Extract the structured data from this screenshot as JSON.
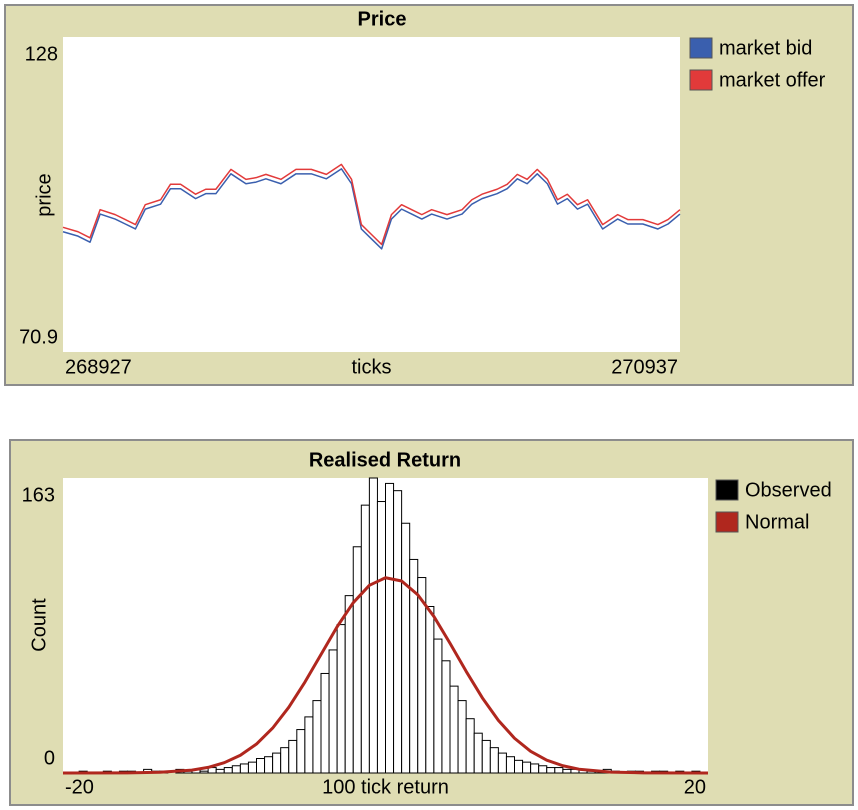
{
  "chart_data": [
    {
      "type": "line",
      "title": "Price",
      "x_label": "ticks",
      "y_label": "price",
      "xlim": [
        268927,
        270937
      ],
      "xticks": [
        268927,
        270937
      ],
      "ylim": [
        70.9,
        128
      ],
      "yticks": [
        70.9,
        128
      ],
      "x": [
        268927,
        268976,
        269015,
        269048,
        269097,
        269130,
        269163,
        269195,
        269245,
        269277,
        269310,
        269359,
        269392,
        269425,
        269474,
        269523,
        269556,
        269588,
        269637,
        269686,
        269736,
        269785,
        269834,
        269867,
        269899,
        269932,
        269965,
        269997,
        270030,
        270063,
        270096,
        270128,
        270178,
        270227,
        270259,
        270292,
        270341,
        270374,
        270407,
        270439,
        270472,
        270505,
        270538,
        270570,
        270603,
        270636,
        270685,
        270734,
        270767,
        270816,
        270865,
        270898,
        270937
      ],
      "series": [
        {
          "name": "market bid",
          "color": "#3a5fae",
          "values": [
            92.7,
            91.9,
            90.8,
            95.9,
            95.0,
            94.1,
            93.2,
            96.8,
            97.7,
            100.5,
            100.5,
            98.7,
            99.6,
            99.6,
            103.2,
            101.4,
            101.7,
            102.3,
            101.4,
            103.2,
            103.2,
            102.3,
            104.1,
            101.4,
            93.2,
            91.4,
            89.6,
            95.0,
            96.8,
            95.9,
            95.0,
            95.9,
            95.0,
            95.9,
            97.7,
            98.7,
            99.6,
            100.5,
            102.3,
            101.4,
            103.2,
            101.4,
            97.7,
            98.7,
            96.8,
            97.7,
            93.2,
            95.0,
            94.1,
            94.1,
            93.2,
            94.1,
            95.9
          ]
        },
        {
          "name": "market offer",
          "color": "#e23a3a",
          "values": [
            93.5,
            92.7,
            91.6,
            96.7,
            95.8,
            94.9,
            94.0,
            97.6,
            98.5,
            101.3,
            101.3,
            99.5,
            100.4,
            100.4,
            104.0,
            102.2,
            102.5,
            103.1,
            102.2,
            104.0,
            104.0,
            103.1,
            104.9,
            102.2,
            94.0,
            92.2,
            90.4,
            95.8,
            97.6,
            96.7,
            95.8,
            96.7,
            95.8,
            96.7,
            98.5,
            99.5,
            100.4,
            101.3,
            103.1,
            102.2,
            104.0,
            102.2,
            98.5,
            99.5,
            97.6,
            98.5,
            94.0,
            95.8,
            94.9,
            94.9,
            94.0,
            94.9,
            96.7
          ]
        }
      ]
    },
    {
      "type": "histogram",
      "title": "Realised Return",
      "x_label": "100 tick return",
      "y_label": "Count",
      "xlim": [
        -20,
        20
      ],
      "xticks": [
        -20,
        20
      ],
      "ylim": [
        0,
        163
      ],
      "yticks": [
        0,
        163
      ],
      "bins": [
        -20,
        -19.5,
        -19,
        -18.5,
        -18,
        -17.5,
        -17,
        -16.5,
        -16,
        -15.5,
        -15,
        -14.5,
        -14,
        -13.5,
        -13,
        -12.5,
        -12,
        -11.5,
        -11,
        -10.5,
        -10,
        -9.5,
        -9,
        -8.5,
        -8,
        -7.5,
        -7,
        -6.5,
        -6,
        -5.5,
        -5,
        -4.5,
        -4,
        -3.5,
        -3,
        -2.5,
        -2,
        -1.5,
        -1,
        -0.5,
        0,
        0.5,
        1,
        1.5,
        2,
        2.5,
        3,
        3.5,
        4,
        4.5,
        5,
        5.5,
        6,
        6.5,
        7,
        7.5,
        8,
        8.5,
        9,
        9.5,
        10,
        10.5,
        11,
        11.5,
        12,
        12.5,
        13,
        13.5,
        14,
        14.5,
        15,
        15.5,
        16,
        16.5,
        17,
        17.5,
        18,
        18.5,
        19,
        19.5,
        20
      ],
      "series": [
        {
          "name": "Observed",
          "type": "histogram",
          "color": "#000000",
          "values": [
            0,
            0,
            1,
            0,
            0,
            1,
            0,
            1,
            1,
            0,
            2,
            1,
            1,
            0,
            2,
            1,
            2,
            1,
            3,
            2,
            3,
            4,
            5,
            6,
            8,
            9,
            11,
            14,
            18,
            24,
            31,
            40,
            55,
            68,
            82,
            98,
            125,
            148,
            163,
            150,
            160,
            156,
            138,
            118,
            108,
            92,
            74,
            62,
            48,
            40,
            30,
            22,
            18,
            14,
            11,
            9,
            7,
            6,
            5,
            4,
            3,
            3,
            2,
            2,
            2,
            1,
            1,
            2,
            1,
            0,
            1,
            1,
            0,
            1,
            1,
            0,
            1,
            0,
            1,
            0
          ]
        },
        {
          "name": "Normal",
          "type": "line",
          "color": "#b0271e",
          "x": [
            -20,
            -16,
            -14,
            -12,
            -11,
            -10,
            -9,
            -8,
            -7,
            -6,
            -5,
            -4,
            -3,
            -2,
            -1,
            0,
            1,
            2,
            3,
            4,
            5,
            6,
            7,
            8,
            9,
            10,
            11,
            12,
            14,
            16,
            20
          ],
          "values": [
            0,
            0.1,
            0.4,
            1.6,
            3.1,
            5.7,
            9.8,
            16.0,
            24.8,
            36.3,
            50.2,
            65.5,
            80.8,
            94.1,
            103.7,
            107.9,
            106.1,
            98.5,
            86.5,
            71.7,
            56.2,
            41.6,
            29.1,
            19.2,
            12.0,
            7.1,
            4.0,
            2.1,
            0.5,
            0.1,
            0
          ]
        }
      ]
    }
  ]
}
